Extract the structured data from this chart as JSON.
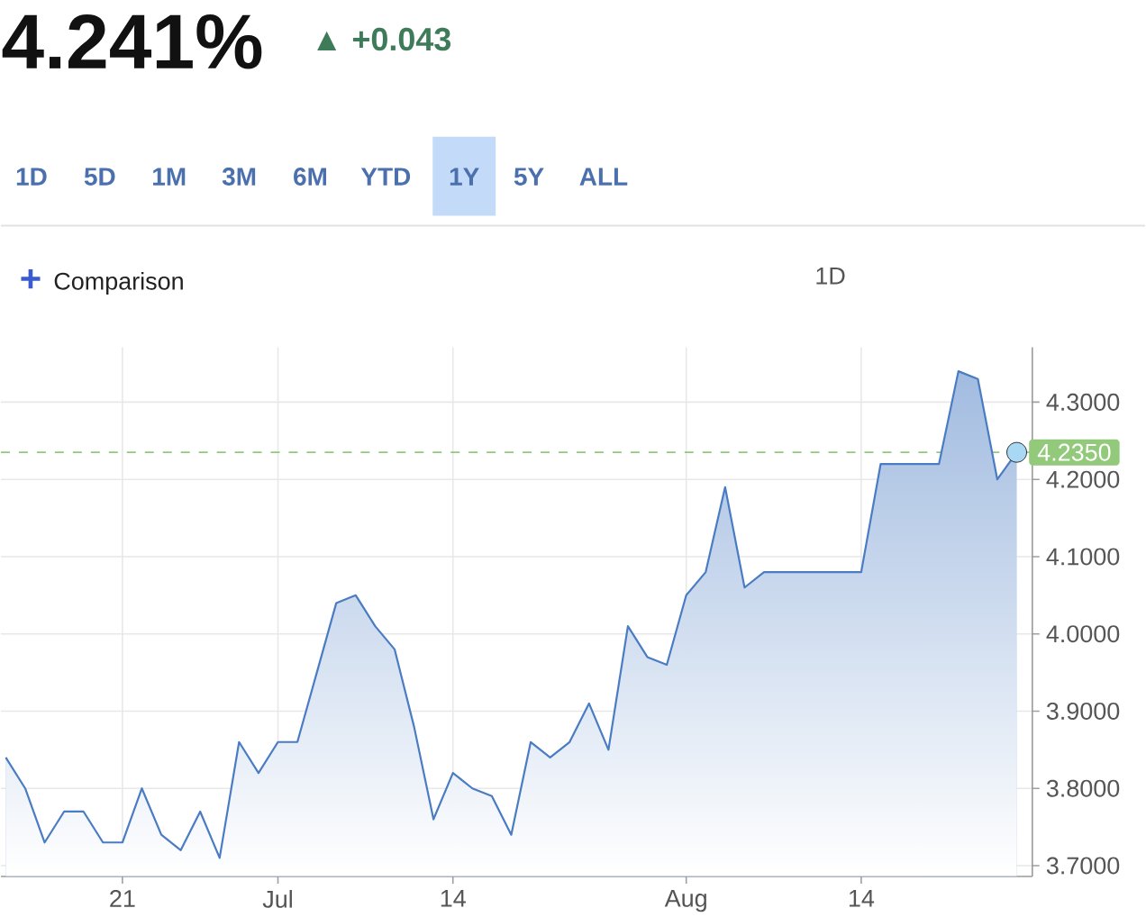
{
  "chart_data": {
    "type": "area",
    "title": "4.241%",
    "subtitle": "▲ +0.043",
    "annotations": [
      "1D",
      "5D",
      "1M",
      "3M",
      "6M",
      "YTD",
      "1Y",
      "5Y",
      "ALL",
      "+",
      "Comparison",
      "1D"
    ],
    "categories": [
      null,
      null,
      null,
      null,
      null,
      null,
      "21",
      null,
      null,
      null,
      null,
      null,
      null,
      null,
      "Jul",
      null,
      null,
      null,
      null,
      null,
      null,
      null,
      null,
      "14",
      null,
      null,
      null,
      null,
      null,
      null,
      null,
      null,
      null,
      null,
      null,
      "Aug",
      null,
      null,
      null,
      null,
      null,
      null,
      null,
      null,
      "14",
      null,
      null,
      null,
      null,
      null,
      null,
      null,
      null
    ],
    "series": [
      {
        "color": "#4a7cc3",
        "values": [
          3.84,
          3.8,
          3.73,
          3.77,
          3.77,
          3.73,
          3.73,
          3.8,
          3.74,
          3.72,
          3.77,
          3.71,
          3.86,
          3.82,
          3.86,
          3.86,
          3.95,
          4.04,
          4.05,
          4.01,
          3.98,
          3.88,
          3.76,
          3.82,
          3.8,
          3.79,
          3.74,
          3.86,
          3.84,
          3.86,
          3.91,
          3.85,
          4.01,
          3.97,
          3.96,
          4.05,
          4.08,
          4.19,
          4.06,
          4.08,
          4.08,
          4.08,
          4.08,
          4.08,
          4.08,
          4.22,
          4.22,
          4.22,
          4.22,
          4.34,
          4.33,
          4.2,
          4.235
        ]
      },
      {
        "type": "scatter",
        "color": "#a9d8f4",
        "values": [
          null,
          null,
          null,
          null,
          null,
          null,
          null,
          null,
          null,
          null,
          null,
          null,
          null,
          null,
          null,
          null,
          null,
          null,
          null,
          null,
          null,
          null,
          null,
          null,
          null,
          null,
          null,
          null,
          null,
          null,
          null,
          null,
          null,
          null,
          null,
          null,
          null,
          null,
          null,
          null,
          null,
          null,
          null,
          null,
          null,
          null,
          null,
          null,
          null,
          null,
          null,
          null,
          4.235
        ]
      }
    ],
    "ylim": [
      3.686,
      4.371
    ],
    "yticks": [
      {
        "value": 3.7,
        "label": "3.7000"
      },
      {
        "value": 3.8,
        "label": "3.8000"
      },
      {
        "value": 3.9,
        "label": "3.9000"
      },
      {
        "value": 4.0,
        "label": "4.0000"
      },
      {
        "value": 4.1,
        "label": "4.1000"
      },
      {
        "value": 4.2,
        "label": "4.2000"
      },
      {
        "value": 4.3,
        "label": "4.3000"
      }
    ],
    "grid": true,
    "ref_lines": [
      {
        "axis": "y",
        "value": 4.235,
        "label": "4.2350",
        "color": "#93c97a",
        "line_style": "dashed"
      }
    ]
  }
}
